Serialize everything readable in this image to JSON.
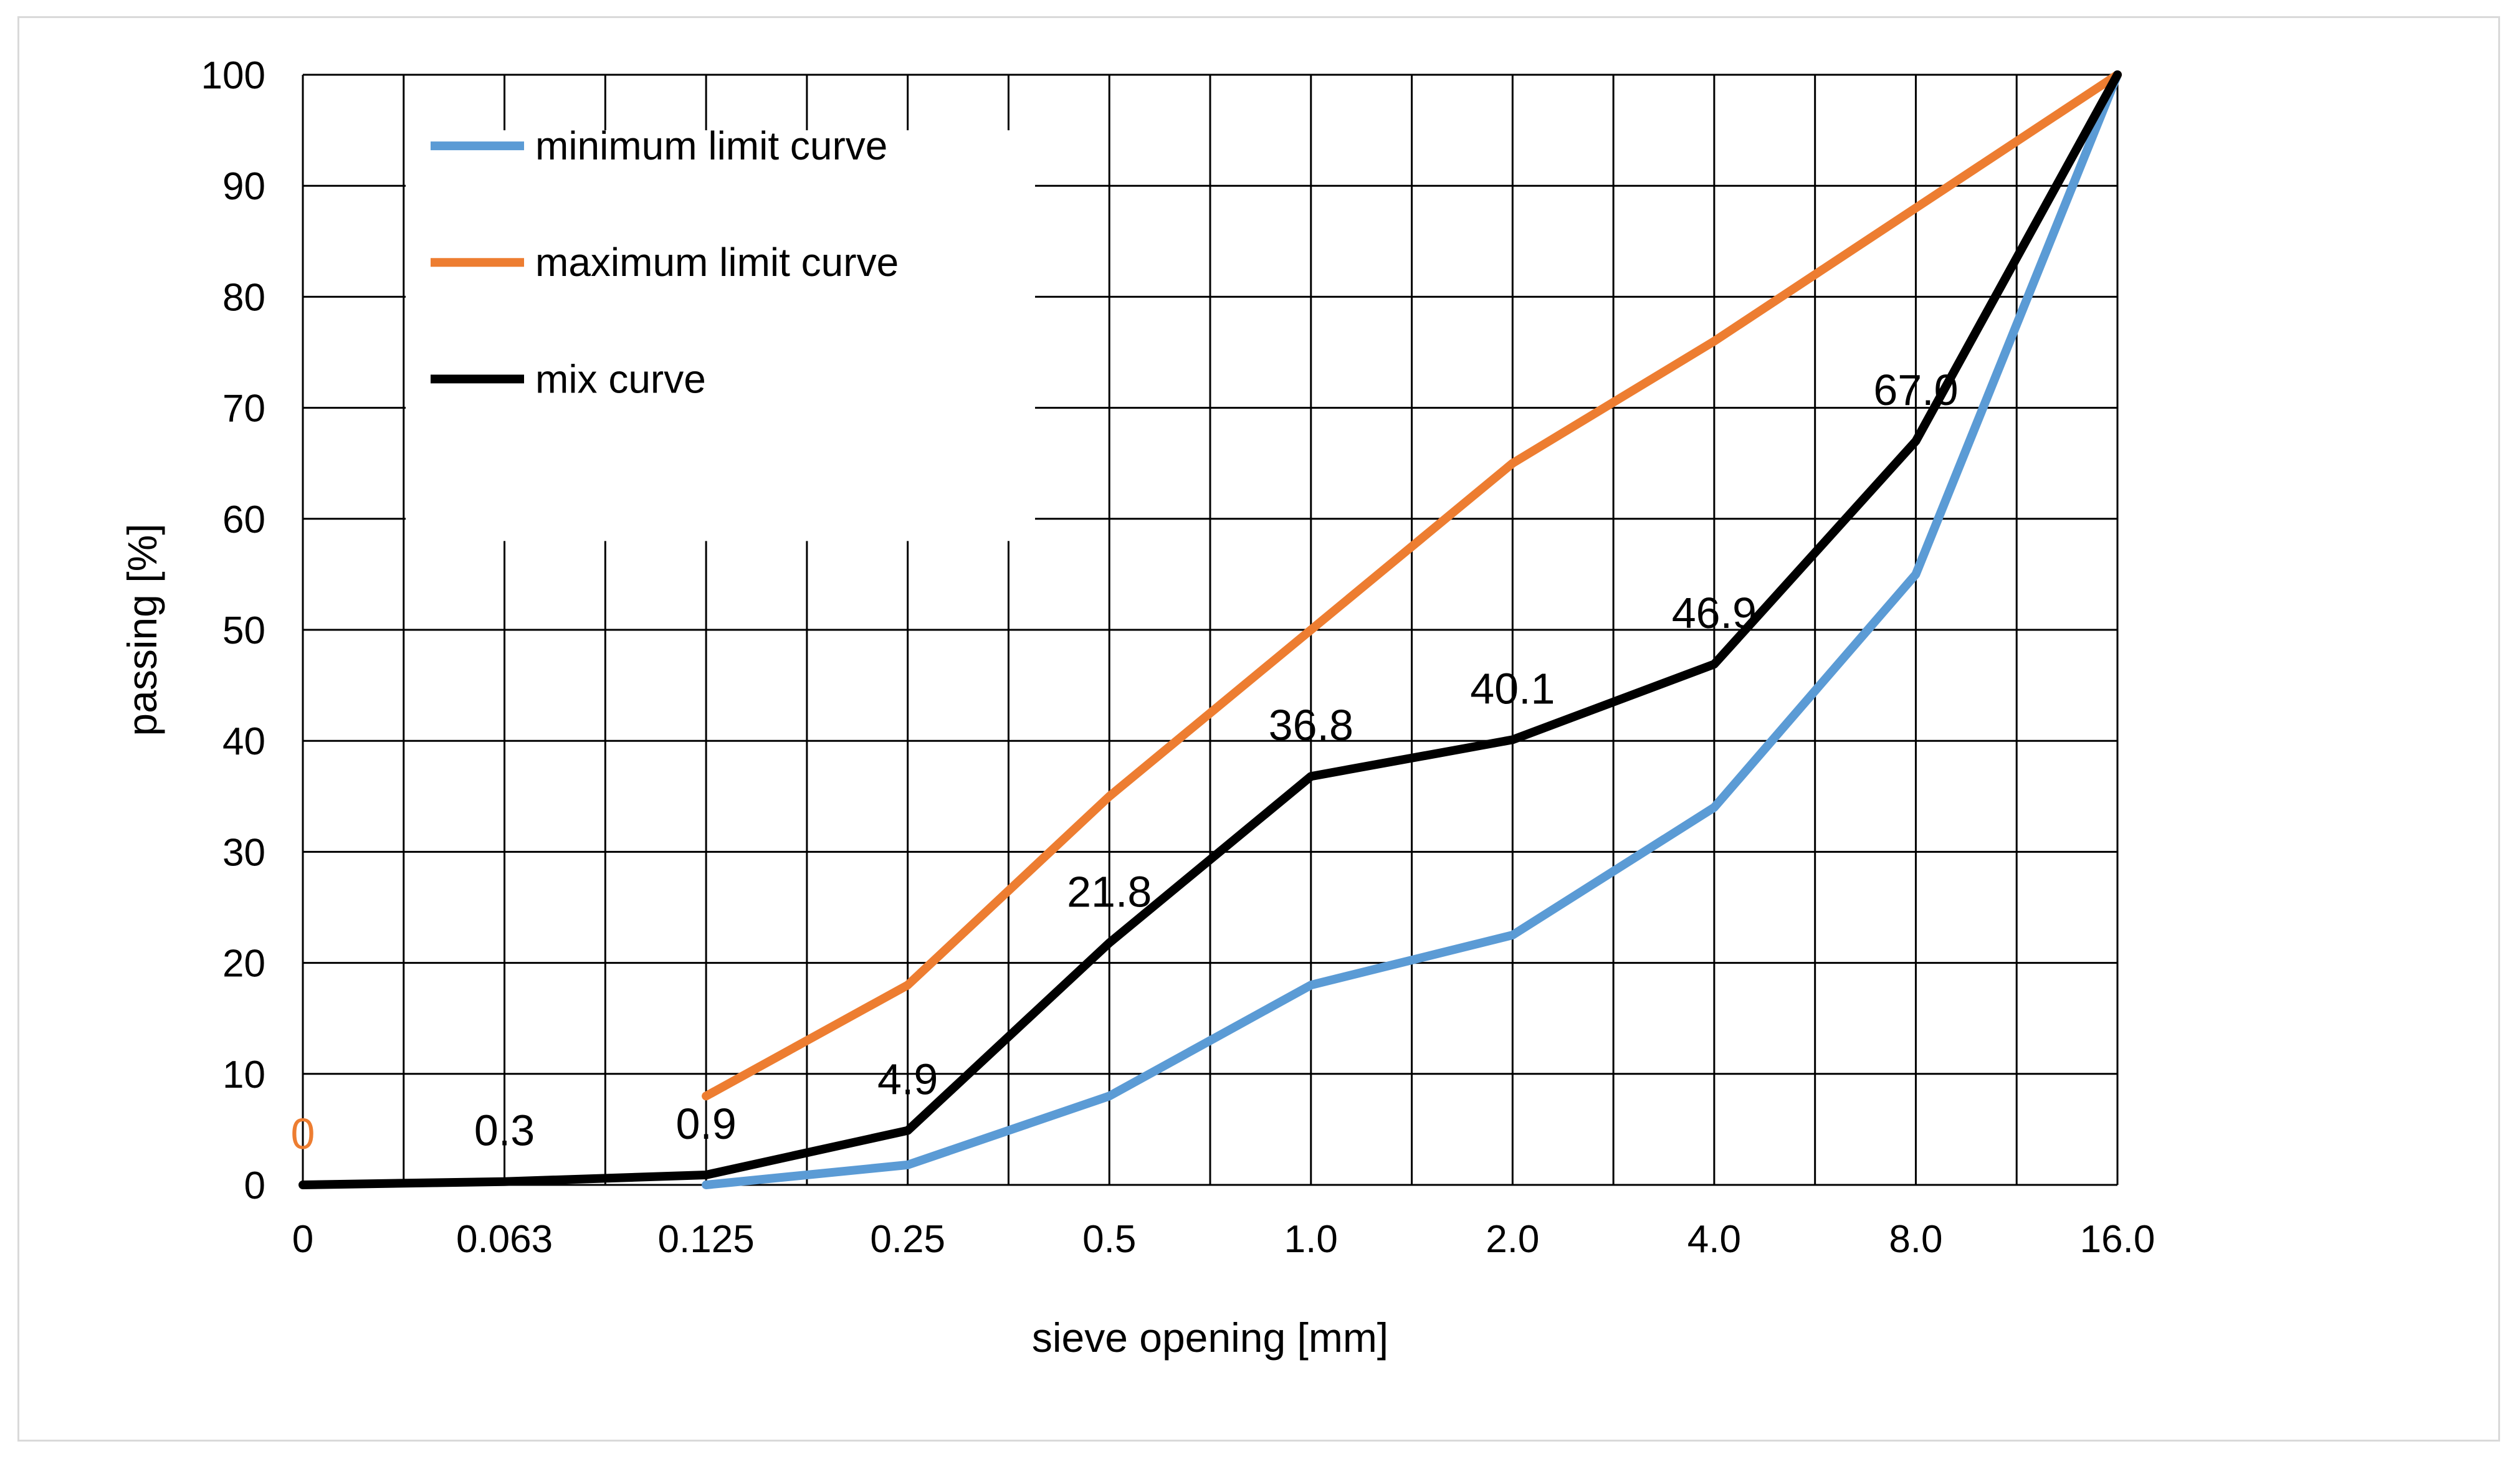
{
  "chart_data": {
    "type": "line",
    "xlabel": "sieve opening [mm]",
    "ylabel": "passing [%]",
    "categories": [
      "0",
      "0.063",
      "0.125",
      "0.25",
      "0.5",
      "1.0",
      "2.0",
      "4.0",
      "8.0",
      "16.0"
    ],
    "ylim": [
      0,
      100
    ],
    "yticks": [
      "0",
      "10",
      "20",
      "30",
      "40",
      "50",
      "60",
      "70",
      "80",
      "90",
      "100"
    ],
    "grid": true,
    "legend_position": "top-left",
    "series": [
      {
        "name": "minimum limit curve",
        "color": "#5b9bd5",
        "points": [
          [
            2,
            0
          ],
          [
            3,
            1.8
          ],
          [
            4,
            8
          ],
          [
            5,
            18
          ],
          [
            6,
            22.5
          ],
          [
            7,
            34
          ],
          [
            8,
            55
          ],
          [
            9,
            100
          ]
        ]
      },
      {
        "name": "maximum limit curve",
        "color": "#ed7d31",
        "points": [
          [
            2,
            8
          ],
          [
            3,
            18
          ],
          [
            4,
            35
          ],
          [
            5,
            50
          ],
          [
            6,
            65
          ],
          [
            7,
            76
          ],
          [
            8,
            88
          ],
          [
            9,
            100
          ]
        ]
      },
      {
        "name": "mix curve",
        "color": "#000000",
        "points": [
          [
            0,
            0
          ],
          [
            1,
            0.3
          ],
          [
            2,
            0.9
          ],
          [
            3,
            4.9
          ],
          [
            4,
            21.8
          ],
          [
            5,
            36.8
          ],
          [
            6,
            40.1
          ],
          [
            7,
            46.9
          ],
          [
            8,
            67.0
          ],
          [
            9,
            100
          ]
        ]
      }
    ],
    "data_labels": [
      {
        "x": 0,
        "y": 0,
        "text": "0",
        "color": "#ed7d31"
      },
      {
        "x": 1,
        "y": 0.3,
        "text": "0.3",
        "color": "#000000"
      },
      {
        "x": 2,
        "y": 0.9,
        "text": "0.9",
        "color": "#000000"
      },
      {
        "x": 3,
        "y": 4.9,
        "text": "4.9",
        "color": "#000000"
      },
      {
        "x": 4,
        "y": 21.8,
        "text": "21.8",
        "color": "#000000"
      },
      {
        "x": 5,
        "y": 36.8,
        "text": "36.8",
        "color": "#000000"
      },
      {
        "x": 6,
        "y": 40.1,
        "text": "40.1",
        "color": "#000000"
      },
      {
        "x": 7,
        "y": 46.9,
        "text": "46.9",
        "color": "#000000"
      },
      {
        "x": 8,
        "y": 67.0,
        "text": "67.0",
        "color": "#000000"
      }
    ]
  }
}
